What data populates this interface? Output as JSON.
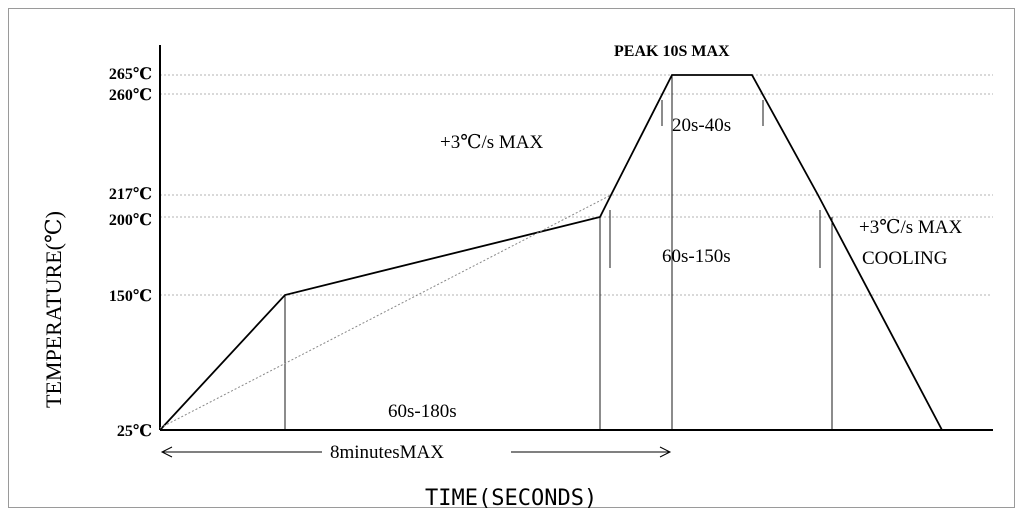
{
  "chart_data": {
    "type": "line",
    "title": "PEAK 10S MAX",
    "xlabel": "TIME(SECONDS)",
    "ylabel": "TEMPERATURE(℃)",
    "y_ticks": [
      {
        "value": 25,
        "label": "25℃"
      },
      {
        "value": 150,
        "label": "150℃"
      },
      {
        "value": 200,
        "label": "200℃"
      },
      {
        "value": 217,
        "label": "217℃"
      },
      {
        "value": 260,
        "label": "260℃"
      },
      {
        "value": 265,
        "label": "265℃"
      }
    ],
    "ylim": [
      25,
      265
    ],
    "series": [
      {
        "values": [
          [
            0,
            25
          ],
          [
            1,
            150
          ],
          [
            2,
            200
          ],
          [
            3,
            217
          ],
          [
            4,
            265
          ],
          [
            5,
            265
          ],
          [
            6,
            217
          ],
          [
            7,
            25
          ]
        ]
      }
    ],
    "annotations": {
      "ramp_up": "+3℃/s MAX",
      "time_above_260": "20s-40s",
      "time_above_217": "60s-150s",
      "preheat": "60s-180s",
      "total": "8minutesMAX",
      "cooling_rate": "+3℃/s MAX",
      "cooling": "COOLING"
    }
  }
}
